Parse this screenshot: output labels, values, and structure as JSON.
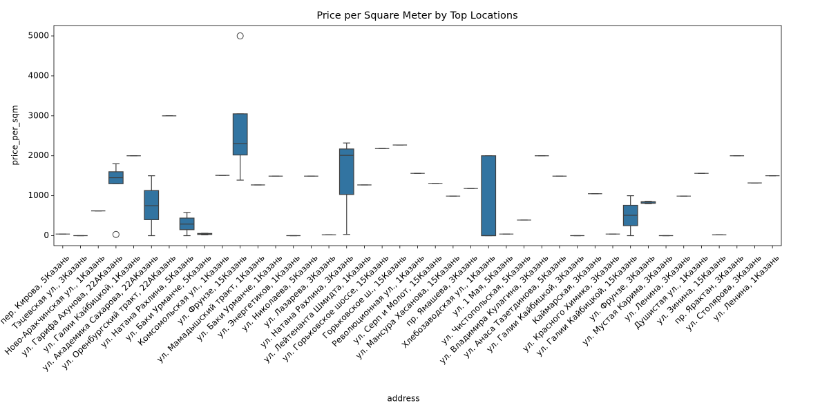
{
  "chart_data": {
    "type": "box",
    "title": "Price per Square Meter by Top Locations",
    "x_label": "address",
    "y_label": "price_per_sqm",
    "color": "#3274a1",
    "ylim": [
      -250,
      5260
    ],
    "yticks": [
      0,
      1000,
      2000,
      3000,
      4000,
      5000
    ],
    "categories": [
      "пер. Кирова, 5Казань",
      "Тэцевская ул., 3Казань",
      "Ново-Аракчинская ул., 1Казань",
      "ул. Гарифа Ахунова, 22АКазань",
      "ул. Галии Кайбицкой, 1Казань",
      "ул. Академика Сахарова, 22АКазань",
      "ул. Оренбургский тракт, 22АКазань",
      "ул. Натана Рахлина, 5Казань",
      "ул. Баки Урманче, 5Казань",
      "Комсомольская ул., 1Казань",
      "ул. Фрунзе, 15Казань",
      "ул. Мамадышский тракт, 1Казань",
      "ул. Баки Урманче, 1Казань",
      "ул. Энергетиков, 1Казань",
      "ул. Николаева, 5Казань",
      "ул. Лазарева, 3Казань",
      "ул. Натана Рахлина, 3Казань",
      "ул. Лейтенанта Шмидта, 1Казань",
      "ул. Горьковское шоссе, 15Казань",
      "Горьковское ш., 15Казань",
      "Революционная ул., 1Казань",
      "ул. Серп и Молот, 15Казань",
      "ул. Мансура Хасанова, 15Казань",
      "пр. Ямашева, 3Казань",
      "Хлебозаводская ул., 1Казань",
      "ул. 1 Мая, 5Казань",
      "ул. Чистопольская, 5Казань",
      "ул. Владимира Кулагина, 3Казань",
      "ул. Анаса Тазетдинова, 5Казань",
      "ул. Галии Кайбицкой, 3Казань",
      "Каймарская, 3Казань",
      "ул. Красного Химика, 3Казань",
      "ул. Галии Кайбицкой, 15Казань",
      "ул. Фрунзе, 3Казань",
      "ул. Мустая Карима, 3Казань",
      "ул. Ленина, 3Казань",
      "Душистая ул., 1Казань",
      "ул. Зинина, 15Казань",
      "пр. Ярактан, 3Казань",
      "ул. Столярова, 3Казань",
      "ул. Ленина, 1Казань"
    ],
    "boxes": [
      {
        "whislo": 40,
        "q1": 40,
        "med": 40,
        "q3": 40,
        "whishi": 40,
        "fliers": []
      },
      {
        "whislo": 0,
        "q1": 0,
        "med": 0,
        "q3": 0,
        "whishi": 0,
        "fliers": []
      },
      {
        "whislo": 620,
        "q1": 620,
        "med": 620,
        "q3": 620,
        "whishi": 620,
        "fliers": []
      },
      {
        "whislo": 1300,
        "q1": 1300,
        "med": 1450,
        "q3": 1600,
        "whishi": 1800,
        "fliers": [
          30
        ]
      },
      {
        "whislo": 2000,
        "q1": 2000,
        "med": 2000,
        "q3": 2000,
        "whishi": 2000,
        "fliers": []
      },
      {
        "whislo": 0,
        "q1": 400,
        "med": 750,
        "q3": 1130,
        "whishi": 1500,
        "fliers": []
      },
      {
        "whislo": 3000,
        "q1": 3000,
        "med": 3000,
        "q3": 3000,
        "whishi": 3000,
        "fliers": []
      },
      {
        "whislo": 0,
        "q1": 150,
        "med": 290,
        "q3": 440,
        "whishi": 580,
        "fliers": []
      },
      {
        "whislo": 20,
        "q1": 30,
        "med": 40,
        "q3": 55,
        "whishi": 60,
        "fliers": []
      },
      {
        "whislo": 1510,
        "q1": 1510,
        "med": 1510,
        "q3": 1510,
        "whishi": 1510,
        "fliers": []
      },
      {
        "whislo": 1390,
        "q1": 2020,
        "med": 2300,
        "q3": 3050,
        "whishi": 3050,
        "fliers": [
          5000
        ]
      },
      {
        "whislo": 1270,
        "q1": 1270,
        "med": 1270,
        "q3": 1270,
        "whishi": 1270,
        "fliers": []
      },
      {
        "whislo": 1490,
        "q1": 1490,
        "med": 1490,
        "q3": 1490,
        "whishi": 1490,
        "fliers": []
      },
      {
        "whislo": 0,
        "q1": 0,
        "med": 0,
        "q3": 0,
        "whishi": 0,
        "fliers": []
      },
      {
        "whislo": 1490,
        "q1": 1490,
        "med": 1490,
        "q3": 1490,
        "whishi": 1490,
        "fliers": []
      },
      {
        "whislo": 20,
        "q1": 20,
        "med": 20,
        "q3": 20,
        "whishi": 20,
        "fliers": []
      },
      {
        "whislo": 30,
        "q1": 1030,
        "med": 2010,
        "q3": 2170,
        "whishi": 2320,
        "fliers": []
      },
      {
        "whislo": 1270,
        "q1": 1270,
        "med": 1270,
        "q3": 1270,
        "whishi": 1270,
        "fliers": []
      },
      {
        "whislo": 2180,
        "q1": 2180,
        "med": 2180,
        "q3": 2180,
        "whishi": 2180,
        "fliers": []
      },
      {
        "whislo": 2270,
        "q1": 2270,
        "med": 2270,
        "q3": 2270,
        "whishi": 2270,
        "fliers": []
      },
      {
        "whislo": 1560,
        "q1": 1560,
        "med": 1560,
        "q3": 1560,
        "whishi": 1560,
        "fliers": []
      },
      {
        "whislo": 1310,
        "q1": 1310,
        "med": 1310,
        "q3": 1310,
        "whishi": 1310,
        "fliers": []
      },
      {
        "whislo": 990,
        "q1": 990,
        "med": 990,
        "q3": 990,
        "whishi": 990,
        "fliers": []
      },
      {
        "whislo": 1180,
        "q1": 1180,
        "med": 1180,
        "q3": 1180,
        "whishi": 1180,
        "fliers": []
      },
      {
        "whislo": 0,
        "q1": 0,
        "med": 0,
        "q3": 2000,
        "whishi": 2000,
        "fliers": []
      },
      {
        "whislo": 40,
        "q1": 40,
        "med": 40,
        "q3": 40,
        "whishi": 40,
        "fliers": []
      },
      {
        "whislo": 390,
        "q1": 390,
        "med": 390,
        "q3": 390,
        "whishi": 390,
        "fliers": []
      },
      {
        "whislo": 2000,
        "q1": 2000,
        "med": 2000,
        "q3": 2000,
        "whishi": 2000,
        "fliers": []
      },
      {
        "whislo": 1490,
        "q1": 1490,
        "med": 1490,
        "q3": 1490,
        "whishi": 1490,
        "fliers": []
      },
      {
        "whislo": 0,
        "q1": 0,
        "med": 0,
        "q3": 0,
        "whishi": 0,
        "fliers": []
      },
      {
        "whislo": 1050,
        "q1": 1050,
        "med": 1050,
        "q3": 1050,
        "whishi": 1050,
        "fliers": []
      },
      {
        "whislo": 40,
        "q1": 40,
        "med": 40,
        "q3": 40,
        "whishi": 40,
        "fliers": []
      },
      {
        "whislo": 0,
        "q1": 250,
        "med": 510,
        "q3": 760,
        "whishi": 1000,
        "fliers": []
      },
      {
        "whislo": 800,
        "q1": 810,
        "med": 840,
        "q3": 850,
        "whishi": 860,
        "fliers": []
      },
      {
        "whislo": 0,
        "q1": 0,
        "med": 0,
        "q3": 0,
        "whishi": 0,
        "fliers": []
      },
      {
        "whislo": 990,
        "q1": 990,
        "med": 990,
        "q3": 990,
        "whishi": 990,
        "fliers": []
      },
      {
        "whislo": 1560,
        "q1": 1560,
        "med": 1560,
        "q3": 1560,
        "whishi": 1560,
        "fliers": []
      },
      {
        "whislo": 20,
        "q1": 20,
        "med": 20,
        "q3": 20,
        "whishi": 20,
        "fliers": []
      },
      {
        "whislo": 2000,
        "q1": 2000,
        "med": 2000,
        "q3": 2000,
        "whishi": 2000,
        "fliers": []
      },
      {
        "whislo": 1320,
        "q1": 1320,
        "med": 1320,
        "q3": 1320,
        "whishi": 1320,
        "fliers": []
      },
      {
        "whislo": 1500,
        "q1": 1500,
        "med": 1500,
        "q3": 1500,
        "whishi": 1500,
        "fliers": []
      }
    ]
  }
}
